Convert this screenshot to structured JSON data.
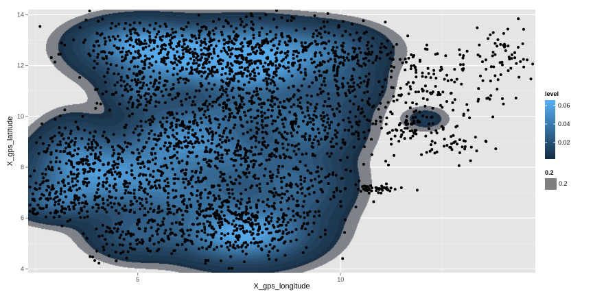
{
  "chart_data": {
    "type": "contour",
    "xlabel": "X_gps_longitude",
    "ylabel": "X_gps_latitude",
    "xlim": [
      2.3,
      14.8
    ],
    "ylim": [
      3.85,
      14.2
    ],
    "x_ticks": [
      5,
      10
    ],
    "x_minor_ticks": [
      2.5,
      7.5,
      12.5
    ],
    "y_ticks": [
      4,
      6,
      8,
      10,
      12,
      14
    ],
    "y_minor_ticks": [
      5,
      7,
      9,
      11,
      13
    ],
    "grid": true,
    "colors": {
      "panel_bg": "#e5e5e5",
      "grid_major": "#ffffff",
      "grid_minor": "#f2f2f2",
      "points": "#000000",
      "level_low": "#132b43",
      "level_high": "#56b1f7",
      "band_fill": "#7f7f7f"
    },
    "legend_level": {
      "title": "level",
      "labels": [
        "0.06",
        "0.04",
        "0.02"
      ],
      "values": [
        0.06,
        0.04,
        0.02
      ],
      "range": [
        0.002,
        0.066
      ],
      "placement": "right"
    },
    "legend_alpha": {
      "title": "0.2",
      "label": "0.2"
    },
    "density_peaks": [
      {
        "x": 7.6,
        "y": 5.4,
        "sx": 1.0,
        "sy": 0.7,
        "level": 0.066
      },
      {
        "x": 4.4,
        "y": 7.7,
        "sx": 1.2,
        "sy": 0.85,
        "level": 0.054
      },
      {
        "x": 6.3,
        "y": 12.3,
        "sx": 1.25,
        "sy": 0.7,
        "level": 0.058
      },
      {
        "x": 8.0,
        "y": 11.8,
        "sx": 1.0,
        "sy": 0.75,
        "level": 0.046
      },
      {
        "x": 6.2,
        "y": 9.2,
        "sx": 0.85,
        "sy": 0.75,
        "level": 0.048
      },
      {
        "x": 5.0,
        "y": 12.9,
        "sx": 0.85,
        "sy": 0.55,
        "level": 0.042
      },
      {
        "x": 9.5,
        "y": 12.6,
        "sx": 0.9,
        "sy": 0.6,
        "level": 0.033
      },
      {
        "x": 9.2,
        "y": 9.6,
        "sx": 0.75,
        "sy": 0.75,
        "level": 0.034
      },
      {
        "x": 8.9,
        "y": 7.3,
        "sx": 0.8,
        "sy": 0.85,
        "level": 0.03
      },
      {
        "x": 3.0,
        "y": 6.7,
        "sx": 0.6,
        "sy": 0.45,
        "level": 0.028
      },
      {
        "x": 5.1,
        "y": 11.0,
        "sx": 0.5,
        "sy": 0.5,
        "level": 0.028
      },
      {
        "x": 6.4,
        "y": 6.9,
        "sx": 0.85,
        "sy": 0.65,
        "level": 0.026
      },
      {
        "x": 5.0,
        "y": 5.4,
        "sx": 0.7,
        "sy": 0.6,
        "level": 0.024
      },
      {
        "x": 3.4,
        "y": 8.6,
        "sx": 0.5,
        "sy": 0.8,
        "level": 0.024
      },
      {
        "x": 7.5,
        "y": 8.4,
        "sx": 0.75,
        "sy": 0.65,
        "level": 0.022
      },
      {
        "x": 7.6,
        "y": 10.2,
        "sx": 0.8,
        "sy": 0.45,
        "level": 0.02
      },
      {
        "x": 10.2,
        "y": 11.2,
        "sx": 0.55,
        "sy": 0.6,
        "level": 0.016
      },
      {
        "x": 7.8,
        "y": 13.1,
        "sx": 0.8,
        "sy": 0.5,
        "level": 0.02
      },
      {
        "x": 12.1,
        "y": 9.9,
        "sx": 0.35,
        "sy": 0.3,
        "level": 0.008
      }
    ],
    "point_clusters": [
      {
        "x": 7.6,
        "y": 5.6,
        "sx": 0.9,
        "sy": 0.6,
        "n": 300
      },
      {
        "x": 4.4,
        "y": 7.7,
        "sx": 1.0,
        "sy": 0.8,
        "n": 280
      },
      {
        "x": 6.3,
        "y": 12.3,
        "sx": 1.1,
        "sy": 0.65,
        "n": 300
      },
      {
        "x": 8.0,
        "y": 11.8,
        "sx": 0.9,
        "sy": 0.7,
        "n": 240
      },
      {
        "x": 6.2,
        "y": 9.2,
        "sx": 0.8,
        "sy": 0.7,
        "n": 220
      },
      {
        "x": 5.0,
        "y": 12.9,
        "sx": 0.8,
        "sy": 0.5,
        "n": 160
      },
      {
        "x": 9.5,
        "y": 12.5,
        "sx": 0.8,
        "sy": 0.6,
        "n": 150
      },
      {
        "x": 9.2,
        "y": 9.6,
        "sx": 0.7,
        "sy": 0.7,
        "n": 180
      },
      {
        "x": 8.9,
        "y": 7.3,
        "sx": 0.7,
        "sy": 0.8,
        "n": 160
      },
      {
        "x": 3.0,
        "y": 6.7,
        "sx": 0.55,
        "sy": 0.45,
        "n": 120
      },
      {
        "x": 5.0,
        "y": 11.0,
        "sx": 0.5,
        "sy": 0.55,
        "n": 120
      },
      {
        "x": 6.4,
        "y": 6.9,
        "sx": 0.9,
        "sy": 0.7,
        "n": 200
      },
      {
        "x": 5.0,
        "y": 5.5,
        "sx": 0.7,
        "sy": 0.6,
        "n": 140
      },
      {
        "x": 3.3,
        "y": 8.6,
        "sx": 0.45,
        "sy": 0.8,
        "n": 110
      },
      {
        "x": 7.5,
        "y": 8.4,
        "sx": 0.7,
        "sy": 0.6,
        "n": 140
      },
      {
        "x": 7.6,
        "y": 10.3,
        "sx": 0.8,
        "sy": 0.45,
        "n": 120
      },
      {
        "x": 10.1,
        "y": 11.4,
        "sx": 0.5,
        "sy": 0.7,
        "n": 90
      },
      {
        "x": 7.8,
        "y": 13.1,
        "sx": 0.8,
        "sy": 0.45,
        "n": 110
      },
      {
        "x": 10.8,
        "y": 7.15,
        "sx": 0.4,
        "sy": 0.07,
        "n": 45
      },
      {
        "x": 12.7,
        "y": 11.8,
        "sx": 0.9,
        "sy": 0.5,
        "n": 70
      },
      {
        "x": 11.5,
        "y": 11.0,
        "sx": 0.5,
        "sy": 0.3,
        "n": 40
      },
      {
        "x": 12.1,
        "y": 9.8,
        "sx": 0.35,
        "sy": 0.5,
        "n": 45
      },
      {
        "x": 11.3,
        "y": 9.5,
        "sx": 0.45,
        "sy": 0.45,
        "n": 40
      },
      {
        "x": 12.8,
        "y": 8.8,
        "sx": 0.4,
        "sy": 0.3,
        "n": 35
      },
      {
        "x": 11.0,
        "y": 12.5,
        "sx": 0.6,
        "sy": 0.3,
        "n": 35
      },
      {
        "x": 14.0,
        "y": 12.4,
        "sx": 0.3,
        "sy": 0.8,
        "n": 40
      },
      {
        "x": 13.1,
        "y": 10.5,
        "sx": 0.5,
        "sy": 0.3,
        "n": 25
      },
      {
        "x": 10.6,
        "y": 9.7,
        "sx": 0.3,
        "sy": 0.5,
        "n": 25
      }
    ]
  }
}
